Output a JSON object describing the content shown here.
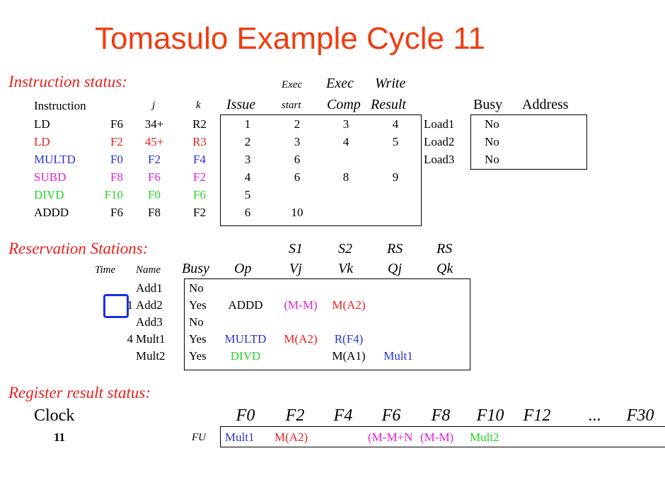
{
  "title": "Tomasulo Example Cycle 11",
  "instruction_status": {
    "heading": "Instruction status:",
    "col_headers": {
      "instruction": "Instruction",
      "j": "j",
      "k": "k",
      "issue": "Issue",
      "exec_start_top": "Exec",
      "exec_start_bottom": "start",
      "exec_comp_top": "Exec",
      "exec_comp_bottom": "Comp",
      "write_top": "Write",
      "write_bottom": "Result"
    },
    "rows": [
      {
        "op": "LD",
        "dest": "F6",
        "j": "34+",
        "k": "R2",
        "issue": "1",
        "exec_start": "2",
        "exec_comp": "3",
        "write": "4",
        "color": "#000000"
      },
      {
        "op": "LD",
        "dest": "F2",
        "j": "45+",
        "k": "R3",
        "issue": "2",
        "exec_start": "3",
        "exec_comp": "4",
        "write": "5",
        "color": "#e8201c"
      },
      {
        "op": "MULTD",
        "dest": "F0",
        "j": "F2",
        "k": "F4",
        "issue": "3",
        "exec_start": "6",
        "exec_comp": "",
        "write": "",
        "color": "#2633d6"
      },
      {
        "op": "SUBD",
        "dest": "F8",
        "j": "F6",
        "k": "F2",
        "issue": "4",
        "exec_start": "6",
        "exec_comp": "8",
        "write": "9",
        "color": "#e020d8"
      },
      {
        "op": "DIVD",
        "dest": "F10",
        "j": "F0",
        "k": "F6",
        "issue": "5",
        "exec_start": "",
        "exec_comp": "",
        "write": "",
        "color": "#22d622"
      },
      {
        "op": "ADDD",
        "dest": "F6",
        "j": "F8",
        "k": "F2",
        "issue": "6",
        "exec_start": "10",
        "exec_comp": "",
        "write": "",
        "color": "#000000"
      }
    ]
  },
  "load_buffers": {
    "col_headers": {
      "busy": "Busy",
      "address": "Address"
    },
    "rows": [
      {
        "name": "Load1",
        "busy": "No",
        "address": ""
      },
      {
        "name": "Load2",
        "busy": "No",
        "address": ""
      },
      {
        "name": "Load3",
        "busy": "No",
        "address": ""
      }
    ]
  },
  "reservation_stations": {
    "heading": "Reservation Stations:",
    "col_headers": {
      "time": "Time",
      "name": "Name",
      "busy": "Busy",
      "op": "Op",
      "s1": "S1",
      "vj": "Vj",
      "s2": "S2",
      "vk": "Vk",
      "rs1": "RS",
      "qj": "Qj",
      "rs2": "RS",
      "qk": "Qk"
    },
    "rows": [
      {
        "time": "",
        "name": "Add1",
        "busy": "No",
        "op": "",
        "vj": "",
        "vk": "",
        "qj": "",
        "qk": "",
        "op_color": "#000000"
      },
      {
        "time": "1",
        "name": "Add2",
        "busy": "Yes",
        "op": "ADDD",
        "vj": "(M-M)",
        "vk": "M(A2)",
        "qj": "",
        "qk": "",
        "op_color": "#000000"
      },
      {
        "time": "",
        "name": "Add3",
        "busy": "No",
        "op": "",
        "vj": "",
        "vk": "",
        "qj": "",
        "qk": "",
        "op_color": "#000000"
      },
      {
        "time": "4",
        "name": "Mult1",
        "busy": "Yes",
        "op": "MULTD",
        "vj": "M(A2)",
        "vk": "R(F4)",
        "qj": "",
        "qk": "",
        "op_color": "#2633d6"
      },
      {
        "time": "",
        "name": "Mult2",
        "busy": "Yes",
        "op": "DIVD",
        "vj": "",
        "vk": "M(A1)",
        "qj": "Mult1",
        "qk": "",
        "op_color": "#22d622"
      }
    ],
    "colors": {
      "vj_add2": "#e020d8",
      "vk_add2": "#e8201c",
      "vj_mult1": "#e8201c",
      "vk_mult1": "#2633d6",
      "vk_mult2": "#000000",
      "qj_mult2": "#2633d6"
    }
  },
  "register_status": {
    "heading": "Register result status:",
    "clock_label": "Clock",
    "clock_value": "11",
    "fu_label": "FU",
    "registers": [
      "F0",
      "F2",
      "F4",
      "F6",
      "F8",
      "F10",
      "F12",
      "...",
      "F30"
    ],
    "values": [
      "Mult1",
      "M(A2)",
      "",
      "(M-M+N",
      "(M-M)",
      "Mult2",
      "",
      "",
      ""
    ],
    "value_colors": [
      "#2633d6",
      "#e8201c",
      "#000000",
      "#e020d8",
      "#e020d8",
      "#22d622",
      "#000000",
      "#000000",
      "#000000"
    ]
  }
}
